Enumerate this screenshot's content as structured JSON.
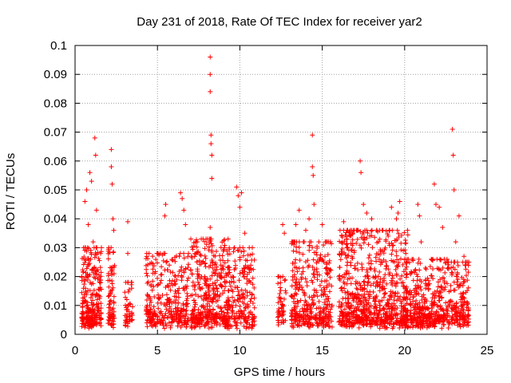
{
  "chart_data": {
    "type": "scatter",
    "title": "Day 231 of 2018, Rate Of TEC Index for receiver yar2",
    "xlabel": "GPS time / hours",
    "ylabel": "ROTI / TECUs",
    "xlim": [
      0,
      25
    ],
    "ylim": [
      0,
      0.1
    ],
    "x_ticks": [
      0,
      5,
      10,
      15,
      20,
      25
    ],
    "x_tick_labels": [
      "0",
      "5",
      "10",
      "15",
      "20",
      "25"
    ],
    "y_ticks": [
      0,
      0.01,
      0.02,
      0.03,
      0.04,
      0.05,
      0.06,
      0.07,
      0.08,
      0.09,
      0.1
    ],
    "y_tick_labels": [
      "0",
      "0.01",
      "0.02",
      "0.03",
      "0.04",
      "0.05",
      "0.06",
      "0.07",
      "0.08",
      "0.09",
      "0.1"
    ],
    "grid": true,
    "legend": "none",
    "marker": "plus",
    "color": "#ff0000",
    "series": [
      {
        "values": [
          [
            0.6,
            0.046
          ],
          [
            0.7,
            0.05
          ],
          [
            0.8,
            0.038
          ],
          [
            0.9,
            0.056
          ],
          [
            1.0,
            0.053
          ],
          [
            1.2,
            0.068
          ],
          [
            1.25,
            0.062
          ],
          [
            1.3,
            0.043
          ],
          [
            1.1,
            0.032
          ],
          [
            2.2,
            0.064
          ],
          [
            2.2,
            0.058
          ],
          [
            2.25,
            0.052
          ],
          [
            2.3,
            0.04
          ],
          [
            2.35,
            0.036
          ],
          [
            3.2,
            0.039
          ],
          [
            3.2,
            0.028
          ],
          [
            5.5,
            0.045
          ],
          [
            5.45,
            0.041
          ],
          [
            6.4,
            0.049
          ],
          [
            6.5,
            0.047
          ],
          [
            6.6,
            0.043
          ],
          [
            6.7,
            0.038
          ],
          [
            8.2,
            0.096
          ],
          [
            8.2,
            0.09
          ],
          [
            8.2,
            0.084
          ],
          [
            8.25,
            0.069
          ],
          [
            8.25,
            0.066
          ],
          [
            8.3,
            0.062
          ],
          [
            8.3,
            0.054
          ],
          [
            8.2,
            0.037
          ],
          [
            8.2,
            0.033
          ],
          [
            9.8,
            0.051
          ],
          [
            9.9,
            0.048
          ],
          [
            10.0,
            0.044
          ],
          [
            10.1,
            0.049
          ],
          [
            10.3,
            0.035
          ],
          [
            12.6,
            0.038
          ],
          [
            12.7,
            0.035
          ],
          [
            13.4,
            0.038
          ],
          [
            13.6,
            0.043
          ],
          [
            14.0,
            0.036
          ],
          [
            14.2,
            0.04
          ],
          [
            14.4,
            0.069
          ],
          [
            14.4,
            0.058
          ],
          [
            14.45,
            0.055
          ],
          [
            14.5,
            0.045
          ],
          [
            15.0,
            0.038
          ],
          [
            16.3,
            0.039
          ],
          [
            16.5,
            0.033
          ],
          [
            17.3,
            0.06
          ],
          [
            17.35,
            0.056
          ],
          [
            17.5,
            0.045
          ],
          [
            17.7,
            0.042
          ],
          [
            18.0,
            0.04
          ],
          [
            18.3,
            0.036
          ],
          [
            19.0,
            0.034
          ],
          [
            19.2,
            0.044
          ],
          [
            19.5,
            0.04
          ],
          [
            19.6,
            0.042
          ],
          [
            19.7,
            0.046
          ],
          [
            20.8,
            0.045
          ],
          [
            20.9,
            0.041
          ],
          [
            21.0,
            0.032
          ],
          [
            21.8,
            0.052
          ],
          [
            21.9,
            0.045
          ],
          [
            22.1,
            0.044
          ],
          [
            22.3,
            0.037
          ],
          [
            22.9,
            0.071
          ],
          [
            22.95,
            0.062
          ],
          [
            23.0,
            0.05
          ],
          [
            23.3,
            0.041
          ],
          [
            23.1,
            0.032
          ],
          [
            23.6,
            0.027
          ],
          [
            23.7,
            0.024
          ]
        ]
      }
    ],
    "data_clusters": [
      {
        "x_range": [
          0.4,
          1.6
        ],
        "y_range": [
          0.002,
          0.03
        ],
        "approx_points": 260
      },
      {
        "x_range": [
          2.0,
          2.4
        ],
        "y_range": [
          0.002,
          0.03
        ],
        "approx_points": 80
      },
      {
        "x_range": [
          3.0,
          3.5
        ],
        "y_range": [
          0.002,
          0.018
        ],
        "approx_points": 50
      },
      {
        "x_range": [
          4.3,
          6.9
        ],
        "y_range": [
          0.002,
          0.028
        ],
        "approx_points": 320
      },
      {
        "x_range": [
          7.0,
          9.3
        ],
        "y_range": [
          0.002,
          0.033
        ],
        "approx_points": 420
      },
      {
        "x_range": [
          9.3,
          10.9
        ],
        "y_range": [
          0.002,
          0.03
        ],
        "approx_points": 200
      },
      {
        "x_range": [
          12.3,
          12.8
        ],
        "y_range": [
          0.003,
          0.02
        ],
        "approx_points": 50
      },
      {
        "x_range": [
          13.1,
          15.6
        ],
        "y_range": [
          0.002,
          0.032
        ],
        "approx_points": 360
      },
      {
        "x_range": [
          16.0,
          20.2
        ],
        "y_range": [
          0.002,
          0.036
        ],
        "approx_points": 760
      },
      {
        "x_range": [
          20.0,
          22.6
        ],
        "y_range": [
          0.002,
          0.026
        ],
        "approx_points": 380
      },
      {
        "x_range": [
          22.6,
          23.9
        ],
        "y_range": [
          0.002,
          0.025
        ],
        "approx_points": 180
      }
    ]
  }
}
